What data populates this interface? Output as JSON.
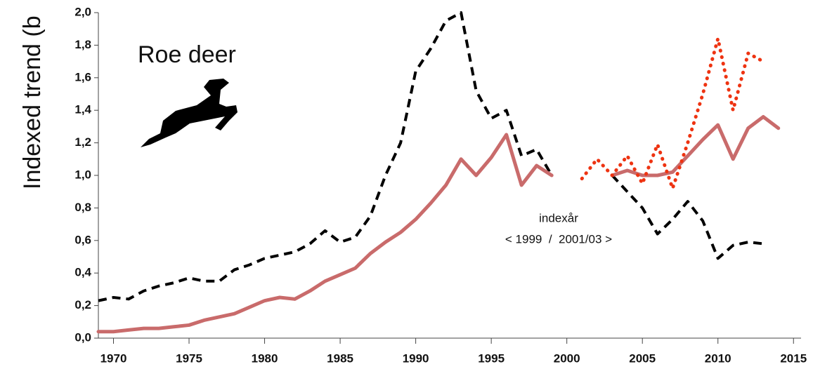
{
  "chart_data": {
    "type": "line",
    "y_label": "Indexed trend (b",
    "annotations": [
      "Roe deer",
      "indexår",
      "< 1999  /  2001/03 >"
    ],
    "x": [
      1969,
      1970,
      1971,
      1972,
      1973,
      1974,
      1975,
      1976,
      1977,
      1978,
      1979,
      1980,
      1981,
      1982,
      1983,
      1984,
      1985,
      1986,
      1987,
      1988,
      1989,
      1990,
      1991,
      1992,
      1993,
      1994,
      1995,
      1996,
      1997,
      1998,
      1999,
      2000,
      2001,
      2002,
      2003,
      2004,
      2005,
      2006,
      2007,
      2008,
      2009,
      2010,
      2011,
      2012,
      2013,
      2014
    ],
    "series": [
      {
        "color": "#000000",
        "style": "dashed",
        "values": [
          0.23,
          0.25,
          0.24,
          0.29,
          0.32,
          0.34,
          0.37,
          0.35,
          0.35,
          0.42,
          0.45,
          0.49,
          0.51,
          0.53,
          0.58,
          0.66,
          0.59,
          0.62,
          0.75,
          1.0,
          1.2,
          1.64,
          1.78,
          1.95,
          2.0,
          1.52,
          1.35,
          1.4,
          1.12,
          1.16,
          1.0,
          null,
          null,
          null,
          1.0,
          0.9,
          0.8,
          0.64,
          0.73,
          0.84,
          0.72,
          0.49,
          0.57,
          0.59,
          0.58,
          null
        ]
      },
      {
        "color": "#c96b6b",
        "style": "solid",
        "values": [
          0.04,
          0.04,
          0.05,
          0.06,
          0.06,
          0.07,
          0.08,
          0.11,
          0.13,
          0.15,
          0.19,
          0.23,
          0.25,
          0.24,
          0.29,
          0.35,
          0.39,
          0.43,
          0.52,
          0.59,
          0.65,
          0.73,
          0.83,
          0.94,
          1.1,
          1.0,
          1.11,
          1.25,
          0.94,
          1.06,
          1.0,
          null,
          null,
          null,
          1.0,
          1.03,
          1.0,
          1.0,
          1.02,
          1.12,
          1.22,
          1.31,
          1.1,
          1.29,
          1.36,
          1.29
        ]
      },
      {
        "color": "#ee3311",
        "style": "dotted",
        "values": [
          null,
          null,
          null,
          null,
          null,
          null,
          null,
          null,
          null,
          null,
          null,
          null,
          null,
          null,
          null,
          null,
          null,
          null,
          null,
          null,
          null,
          null,
          null,
          null,
          null,
          null,
          null,
          null,
          null,
          null,
          null,
          null,
          0.98,
          1.1,
          1.0,
          1.12,
          0.95,
          1.19,
          0.92,
          1.2,
          1.5,
          1.84,
          1.4,
          1.75,
          1.7,
          null
        ]
      }
    ],
    "xlim": [
      1969,
      2015.5
    ],
    "xticks": [
      1970,
      1975,
      1980,
      1985,
      1990,
      1995,
      2000,
      2005,
      2010,
      2015
    ],
    "ylim": [
      0,
      2
    ],
    "yticks": [
      {
        "value": 0,
        "label": "0,0"
      },
      {
        "value": 0.2,
        "label": "0,2"
      },
      {
        "value": 0.4,
        "label": "0,4"
      },
      {
        "value": 0.6,
        "label": "0,6"
      },
      {
        "value": 0.8,
        "label": "0,8"
      },
      {
        "value": 1,
        "label": "1,0"
      },
      {
        "value": 1.2,
        "label": "1,2"
      },
      {
        "value": 1.4,
        "label": "1,4"
      },
      {
        "value": 1.6,
        "label": "1,6"
      },
      {
        "value": 1.8,
        "label": "1,8"
      },
      {
        "value": 2,
        "label": "2,0"
      }
    ]
  }
}
